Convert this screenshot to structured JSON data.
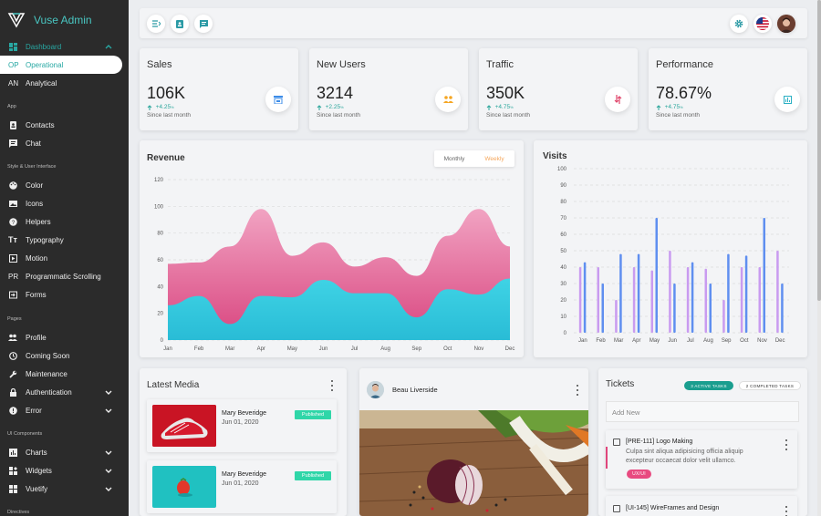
{
  "sidebar": {
    "brand": "Vuse Admin",
    "items": [
      {
        "label": "Dashboard",
        "icon": "dashboard-icon"
      },
      {
        "label": "Operational",
        "abbr": "OP"
      },
      {
        "label": "Analytical",
        "abbr": "AN"
      },
      {
        "label": "Contacts",
        "icon": "contacts-icon"
      },
      {
        "label": "Chat",
        "icon": "chat-icon"
      },
      {
        "label": "Color",
        "icon": "palette-icon"
      },
      {
        "label": "Icons",
        "icon": "image-icon"
      },
      {
        "label": "Helpers",
        "icon": "help-icon"
      },
      {
        "label": "Typography",
        "icon": "typography-icon"
      },
      {
        "label": "Motion",
        "icon": "motion-icon"
      },
      {
        "label": "Programmatic Scrolling",
        "abbr": "PR"
      },
      {
        "label": "Forms",
        "icon": "forms-icon"
      },
      {
        "label": "Profile",
        "icon": "people-icon"
      },
      {
        "label": "Coming Soon",
        "icon": "clock-icon"
      },
      {
        "label": "Maintenance",
        "icon": "wrench-icon"
      },
      {
        "label": "Authentication",
        "icon": "lock-icon"
      },
      {
        "label": "Error",
        "icon": "error-icon"
      },
      {
        "label": "Charts",
        "icon": "charts-icon"
      },
      {
        "label": "Widgets",
        "icon": "widgets-icon"
      },
      {
        "label": "Vuetify",
        "icon": "vuetify-icon"
      }
    ],
    "sections": [
      "App",
      "Style & User Interface",
      "Pages",
      "UI Components",
      "Directives"
    ]
  },
  "stats": [
    {
      "title": "Sales",
      "value": "106K",
      "change": "+4.25",
      "note": "Since last month",
      "icon": "store-icon",
      "color": "#3d8de8"
    },
    {
      "title": "New Users",
      "value": "3214",
      "change": "+2.25",
      "note": "Since last month",
      "icon": "users-icon",
      "color": "#f5a623"
    },
    {
      "title": "Traffic",
      "value": "350K",
      "change": "+4.75",
      "note": "Since last month",
      "icon": "swap-icon",
      "color": "#e0456b"
    },
    {
      "title": "Performance",
      "value": "78.67%",
      "change": "+4.75",
      "note": "Since last month",
      "icon": "chart-box-icon",
      "color": "#2bb0c4"
    }
  ],
  "percent_sign": "%",
  "revenue": {
    "title": "Revenue",
    "toggle": [
      "Monthly",
      "Weekly"
    ]
  },
  "visits": {
    "title": "Visits"
  },
  "chart_data": [
    {
      "type": "area",
      "title": "Revenue",
      "categories": [
        "Jan",
        "Feb",
        "Mar",
        "Apr",
        "May",
        "Jun",
        "Jul",
        "Aug",
        "Sep",
        "Oct",
        "Nov",
        "Dec"
      ],
      "ylim": [
        0,
        120
      ],
      "yticks": [
        0,
        20,
        40,
        60,
        80,
        100,
        120
      ],
      "series": [
        {
          "values": [
            57,
            58,
            70,
            98,
            63,
            73,
            55,
            62,
            48,
            78,
            98,
            70
          ],
          "color": "#e46c9c"
        },
        {
          "values": [
            26,
            33,
            12,
            33,
            32,
            45,
            35,
            35,
            17,
            38,
            34,
            46
          ],
          "color": "#37c9dd"
        }
      ]
    },
    {
      "type": "bar",
      "title": "Visits",
      "categories": [
        "Jan",
        "Feb",
        "Mar",
        "Apr",
        "May",
        "Jun",
        "Jul",
        "Aug",
        "Sep",
        "Oct",
        "Nov",
        "Dec"
      ],
      "ylim": [
        0,
        100
      ],
      "yticks": [
        0,
        10,
        20,
        30,
        40,
        50,
        60,
        70,
        80,
        90,
        100
      ],
      "series": [
        {
          "values": [
            40,
            40,
            20,
            40,
            38,
            50,
            40,
            39,
            20,
            40,
            40,
            50
          ],
          "color": "#c99bf0"
        },
        {
          "values": [
            43,
            30,
            48,
            48,
            70,
            30,
            43,
            30,
            48,
            47,
            70,
            30
          ],
          "color": "#5f8ff0"
        }
      ]
    }
  ],
  "media": {
    "title": "Latest Media",
    "items": [
      {
        "name": "Mary Beveridge",
        "date": "Jun 01, 2020",
        "status": "Published",
        "thumb": "shoe-thumbnail"
      },
      {
        "name": "Mary Beveridge",
        "date": "Jun 01, 2020",
        "status": "Published",
        "thumb": "tomato-thumbnail"
      }
    ]
  },
  "post": {
    "author": "Beau Liverside",
    "image": "vegetables-photo"
  },
  "tickets": {
    "title": "Tickets",
    "badges": [
      "3 ACTIVE TASKS",
      "2 COMPLETED TASKS"
    ],
    "add_placeholder": "Add New",
    "items": [
      {
        "title": "[PRE-111] Logo Making",
        "desc": "Culpa sint aliqua adipisicing officia aliquip excepteur occaecat dolor velit ullamco.",
        "tag": "UX/UI"
      },
      {
        "title": "[UI-145] WireFrames and Design",
        "desc": "",
        "tag": ""
      }
    ]
  }
}
